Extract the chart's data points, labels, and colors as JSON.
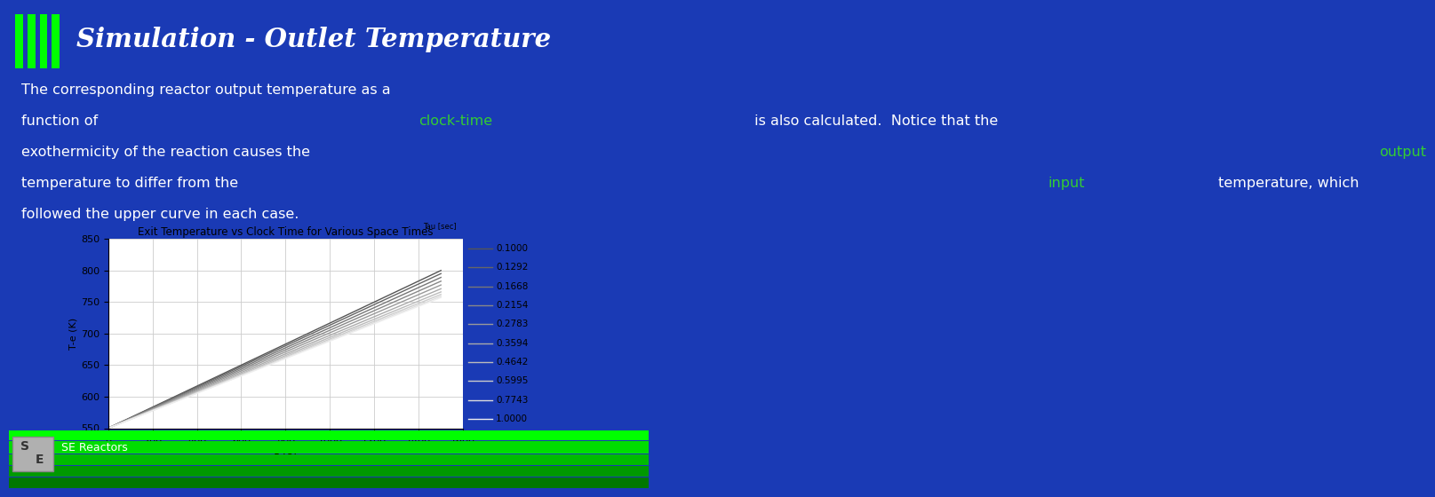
{
  "slide_bg": "#1a3ab5",
  "title_text": "Simulation - Outlet Temperature",
  "title_color": "#ffffff",
  "green_bar_color": "#00ff00",
  "body_fontsize": 11.5,
  "body_text_color": "#ffffff",
  "green_text_color": "#33cc33",
  "chart_title_main": "Exit Temperature vs Clock Time for Various Space Times",
  "chart_title_sub": "Tau [sec]",
  "xlabel": "t (s)",
  "ylabel": "T-e (K)",
  "xlim": [
    0,
    1600
  ],
  "ylim": [
    550,
    850
  ],
  "xticks": [
    0,
    200,
    400,
    600,
    800,
    1000,
    1200,
    1400,
    1600
  ],
  "yticks": [
    550,
    600,
    650,
    700,
    750,
    800,
    850
  ],
  "tau_values": [
    0.1,
    0.1292,
    0.1668,
    0.2154,
    0.2783,
    0.3594,
    0.4642,
    0.5995,
    0.7743,
    1.0
  ],
  "T_start": 550,
  "t_max": 1500,
  "T_ends": [
    800,
    795,
    789,
    783,
    777,
    771,
    766,
    762,
    759,
    757
  ],
  "footer_text": "SE Reactors",
  "chart_bg": "#ffffff",
  "grid_color": "#cccccc",
  "line_colors": [
    "#555555",
    "#666666",
    "#777777",
    "#888888",
    "#999999",
    "#aaaaaa",
    "#bbbbbb",
    "#cccccc",
    "#dddddd",
    "#eeeeee"
  ]
}
